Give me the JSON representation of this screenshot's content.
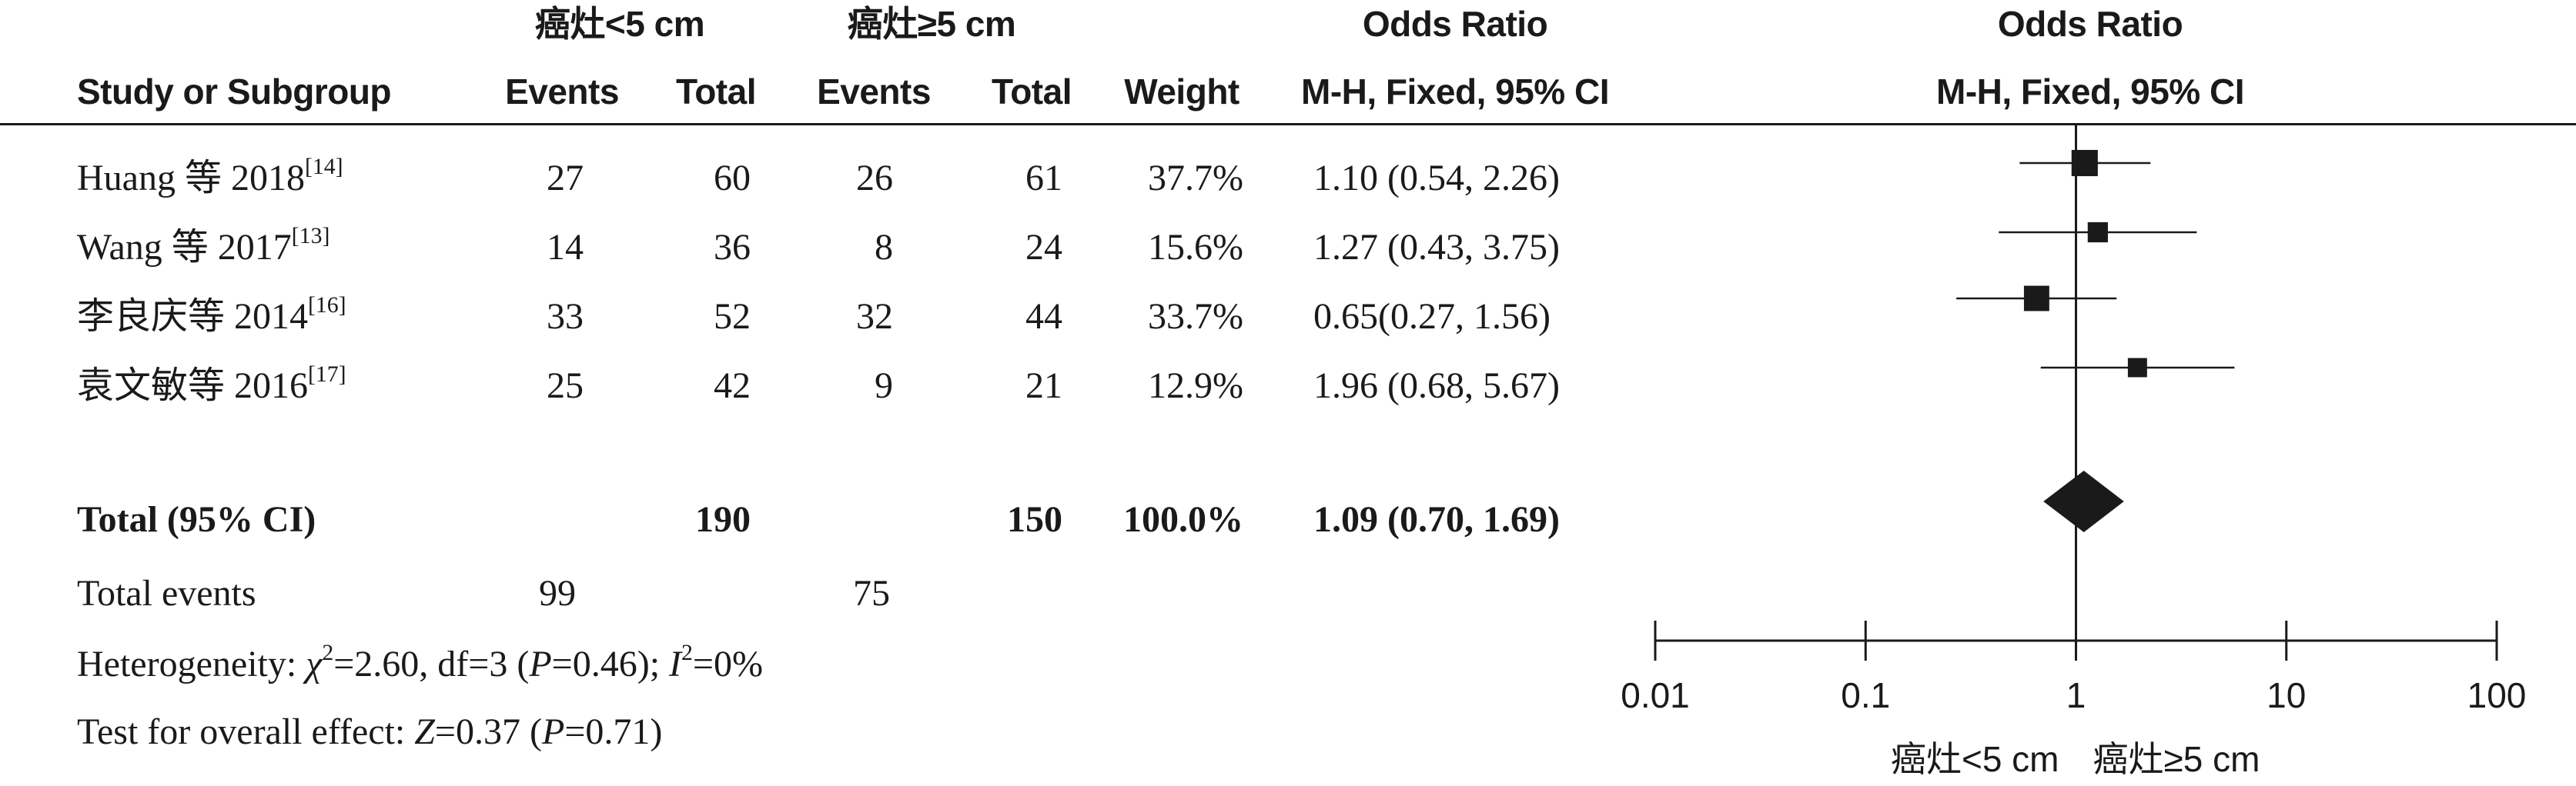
{
  "header": {
    "group1": "癌灶<5 cm",
    "group2": "癌灶≥5 cm",
    "or_title": "Odds Ratio",
    "or_title_plot": "Odds Ratio",
    "study_col": "Study or Subgroup",
    "events1": "Events",
    "total1": "Total",
    "events2": "Events",
    "total2": "Total",
    "weight": "Weight",
    "method": "M-H, Fixed, 95% CI",
    "method_plot": "M-H, Fixed, 95% CI"
  },
  "studies": [
    {
      "name": "Huang 等 2018",
      "ref": "[14]",
      "e1": "27",
      "t1": "60",
      "e2": "26",
      "t2": "61",
      "weight": "37.7%",
      "ci_text": "1.10 (0.54, 2.26)"
    },
    {
      "name": "Wang 等 2017",
      "ref": "[13]",
      "e1": "14",
      "t1": "36",
      "e2": "8",
      "t2": "24",
      "weight": "15.6%",
      "ci_text": "1.27 (0.43, 3.75)"
    },
    {
      "name": "李良庆等 2014",
      "ref": "[16]",
      "e1": "33",
      "t1": "52",
      "e2": "32",
      "t2": "44",
      "weight": "33.7%",
      "ci_text": "0.65(0.27, 1.56)"
    },
    {
      "name": "袁文敏等 2016",
      "ref": "[17]",
      "e1": "25",
      "t1": "42",
      "e2": "9",
      "t2": "21",
      "weight": "12.9%",
      "ci_text": "1.96 (0.68, 5.67)"
    }
  ],
  "total": {
    "label": "Total (95% CI)",
    "t1": "190",
    "t2": "150",
    "weight": "100.0%",
    "ci_text": "1.09 (0.70, 1.69)"
  },
  "events_row": {
    "label": "Total events",
    "e1": "99",
    "e2": "75"
  },
  "heterogeneity": {
    "prefix": "Heterogeneity: ",
    "chi": "χ",
    "chi_sup": "2",
    "chi_rest": "=2.60, df=3 (",
    "p": "P",
    "p_rest": "=0.46); ",
    "i": "I",
    "i_sup": "2",
    "i_rest": "=0%"
  },
  "overall": {
    "prefix": "Test for overall effect: ",
    "z": "Z",
    "z_rest": "=0.37 (",
    "p": "P",
    "p_rest": "=0.71)"
  },
  "chart_data": {
    "type": "forest",
    "x_scale": "log",
    "x_ticks": [
      "0.01",
      "0.1",
      "1",
      "10",
      "100"
    ],
    "x_tick_values": [
      0.01,
      0.1,
      1,
      10,
      100
    ],
    "xlim": [
      0.01,
      100
    ],
    "reference_line": 1,
    "favors_left": "癌灶<5 cm",
    "favors_right": "癌灶≥5 cm",
    "points": [
      {
        "study": "Huang 等 2018",
        "or": 1.1,
        "lower": 0.54,
        "upper": 2.26,
        "weight": 37.7
      },
      {
        "study": "Wang 等 2017",
        "or": 1.27,
        "lower": 0.43,
        "upper": 3.75,
        "weight": 15.6
      },
      {
        "study": "李良庆等 2014",
        "or": 0.65,
        "lower": 0.27,
        "upper": 1.56,
        "weight": 33.7
      },
      {
        "study": "袁文敏等 2016",
        "or": 1.96,
        "lower": 0.68,
        "upper": 5.67,
        "weight": 12.9
      }
    ],
    "summary": {
      "or": 1.09,
      "lower": 0.7,
      "upper": 1.69
    },
    "colors": {
      "ink": "#1a1a1a"
    }
  }
}
